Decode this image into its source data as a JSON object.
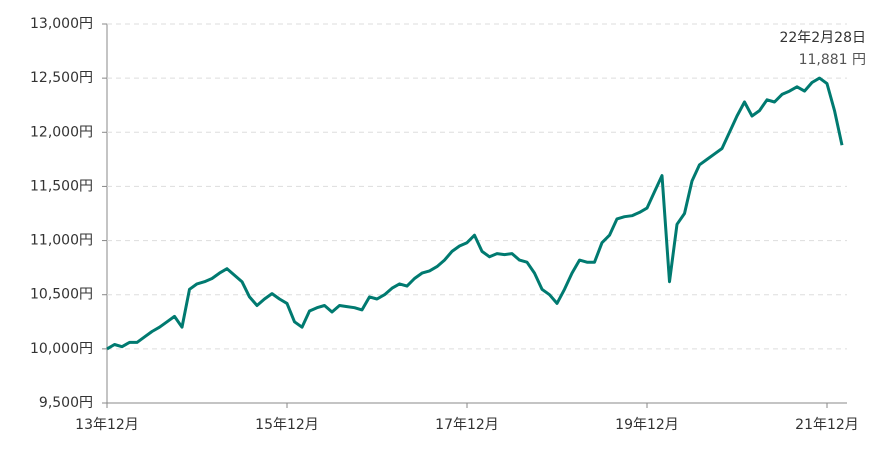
{
  "chart_data": {
    "type": "line",
    "categories": [
      "13年12月",
      null,
      null,
      null,
      null,
      null,
      null,
      null,
      null,
      null,
      null,
      null,
      null,
      null,
      null,
      null,
      null,
      null,
      null,
      null,
      null,
      null,
      null,
      null,
      "15年12月",
      null,
      null,
      null,
      null,
      null,
      null,
      null,
      null,
      null,
      null,
      null,
      null,
      null,
      null,
      null,
      null,
      null,
      null,
      null,
      null,
      null,
      null,
      null,
      "17年12月",
      null,
      null,
      null,
      null,
      null,
      null,
      null,
      null,
      null,
      null,
      null,
      null,
      null,
      null,
      null,
      null,
      null,
      null,
      null,
      null,
      null,
      null,
      null,
      "19年12月",
      null,
      null,
      null,
      null,
      null,
      null,
      null,
      null,
      null,
      null,
      null,
      null,
      null,
      null,
      null,
      null,
      null,
      null,
      null,
      null,
      null,
      null,
      null,
      "21年12月",
      null,
      null
    ],
    "values": [
      10000,
      10040,
      10020,
      10060,
      10060,
      10110,
      10160,
      10200,
      10250,
      10300,
      10200,
      10550,
      10600,
      10620,
      10650,
      10700,
      10740,
      10680,
      10620,
      10480,
      10400,
      10460,
      10510,
      10460,
      10420,
      10250,
      10200,
      10350,
      10380,
      10400,
      10340,
      10400,
      10390,
      10380,
      10360,
      10480,
      10460,
      10500,
      10560,
      10600,
      10580,
      10650,
      10700,
      10720,
      10760,
      10820,
      10900,
      10950,
      10980,
      11050,
      10900,
      10850,
      10880,
      10870,
      10880,
      10820,
      10800,
      10700,
      10550,
      10500,
      10420,
      10550,
      10700,
      10820,
      10800,
      10800,
      10980,
      11050,
      11200,
      11220,
      11230,
      11260,
      11300,
      11450,
      11600,
      10620,
      11150,
      11250,
      11550,
      11700,
      11750,
      11800,
      11850,
      12000,
      12150,
      12280,
      12150,
      12200,
      12300,
      12280,
      12350,
      12380,
      12420,
      12380,
      12460,
      12500,
      12450,
      12200,
      11881
    ],
    "color": "#007a70",
    "annotation": {
      "date": "22年2月28日",
      "value": 11881,
      "label": "11,881 円"
    },
    "ylim": [
      9500,
      13000
    ],
    "yticks": [
      {
        "value": 9500,
        "label": "9,500円"
      },
      {
        "value": 10000,
        "label": "10,000円"
      },
      {
        "value": 10500,
        "label": "10,500円"
      },
      {
        "value": 11000,
        "label": "11,000円"
      },
      {
        "value": 11500,
        "label": "11,500円"
      },
      {
        "value": 12000,
        "label": "12,000円"
      },
      {
        "value": 12500,
        "label": "12,500円"
      },
      {
        "value": 13000,
        "label": "13,000円"
      }
    ],
    "grid": true
  }
}
